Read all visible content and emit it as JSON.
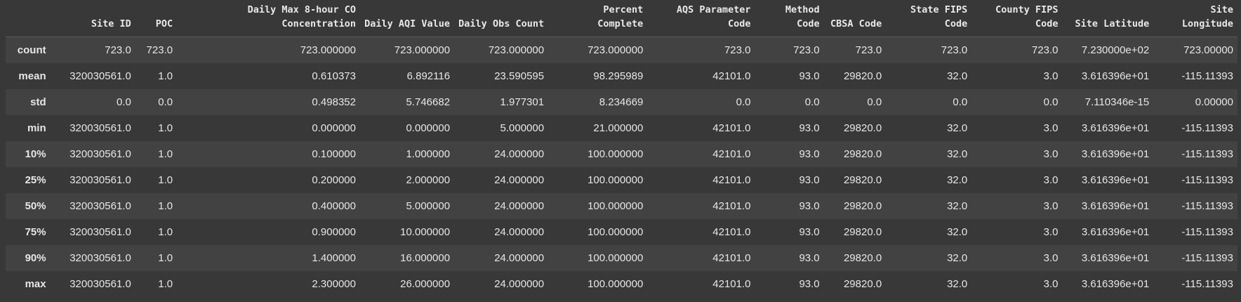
{
  "columns": [
    {
      "key": "site_id",
      "label": "Site ID"
    },
    {
      "key": "poc",
      "label": "POC"
    },
    {
      "key": "co",
      "label": "Daily Max 8-hour CO Concentration"
    },
    {
      "key": "aqi",
      "label": "Daily AQI Value"
    },
    {
      "key": "obs",
      "label": "Daily Obs Count"
    },
    {
      "key": "pct",
      "label": "Percent Complete"
    },
    {
      "key": "aqs",
      "label": "AQS Parameter Code"
    },
    {
      "key": "method",
      "label": "Method Code"
    },
    {
      "key": "cbsa",
      "label": "CBSA Code"
    },
    {
      "key": "state",
      "label": "State FIPS Code"
    },
    {
      "key": "county",
      "label": "County FIPS Code"
    },
    {
      "key": "lat",
      "label": "Site Latitude"
    },
    {
      "key": "lon",
      "label": "Site Longitude"
    }
  ],
  "rows": [
    {
      "index": "count",
      "values": [
        "723.0",
        "723.0",
        "723.000000",
        "723.000000",
        "723.000000",
        "723.000000",
        "723.0",
        "723.0",
        "723.0",
        "723.0",
        "723.0",
        "7.230000e+02",
        "723.00000"
      ]
    },
    {
      "index": "mean",
      "values": [
        "320030561.0",
        "1.0",
        "0.610373",
        "6.892116",
        "23.590595",
        "98.295989",
        "42101.0",
        "93.0",
        "29820.0",
        "32.0",
        "3.0",
        "3.616396e+01",
        "-115.11393"
      ]
    },
    {
      "index": "std",
      "values": [
        "0.0",
        "0.0",
        "0.498352",
        "5.746682",
        "1.977301",
        "8.234669",
        "0.0",
        "0.0",
        "0.0",
        "0.0",
        "0.0",
        "7.110346e-15",
        "0.00000"
      ]
    },
    {
      "index": "min",
      "values": [
        "320030561.0",
        "1.0",
        "0.000000",
        "0.000000",
        "5.000000",
        "21.000000",
        "42101.0",
        "93.0",
        "29820.0",
        "32.0",
        "3.0",
        "3.616396e+01",
        "-115.11393"
      ]
    },
    {
      "index": "10%",
      "values": [
        "320030561.0",
        "1.0",
        "0.100000",
        "1.000000",
        "24.000000",
        "100.000000",
        "42101.0",
        "93.0",
        "29820.0",
        "32.0",
        "3.0",
        "3.616396e+01",
        "-115.11393"
      ]
    },
    {
      "index": "25%",
      "values": [
        "320030561.0",
        "1.0",
        "0.200000",
        "2.000000",
        "24.000000",
        "100.000000",
        "42101.0",
        "93.0",
        "29820.0",
        "32.0",
        "3.0",
        "3.616396e+01",
        "-115.11393"
      ]
    },
    {
      "index": "50%",
      "values": [
        "320030561.0",
        "1.0",
        "0.400000",
        "5.000000",
        "24.000000",
        "100.000000",
        "42101.0",
        "93.0",
        "29820.0",
        "32.0",
        "3.0",
        "3.616396e+01",
        "-115.11393"
      ]
    },
    {
      "index": "75%",
      "values": [
        "320030561.0",
        "1.0",
        "0.900000",
        "10.000000",
        "24.000000",
        "100.000000",
        "42101.0",
        "93.0",
        "29820.0",
        "32.0",
        "3.0",
        "3.616396e+01",
        "-115.11393"
      ]
    },
    {
      "index": "90%",
      "values": [
        "320030561.0",
        "1.0",
        "1.400000",
        "16.000000",
        "24.000000",
        "100.000000",
        "42101.0",
        "93.0",
        "29820.0",
        "32.0",
        "3.0",
        "3.616396e+01",
        "-115.11393"
      ]
    },
    {
      "index": "max",
      "values": [
        "320030561.0",
        "1.0",
        "2.300000",
        "26.000000",
        "24.000000",
        "100.000000",
        "42101.0",
        "93.0",
        "29820.0",
        "32.0",
        "3.0",
        "3.616396e+01",
        "-115.11393"
      ]
    }
  ]
}
